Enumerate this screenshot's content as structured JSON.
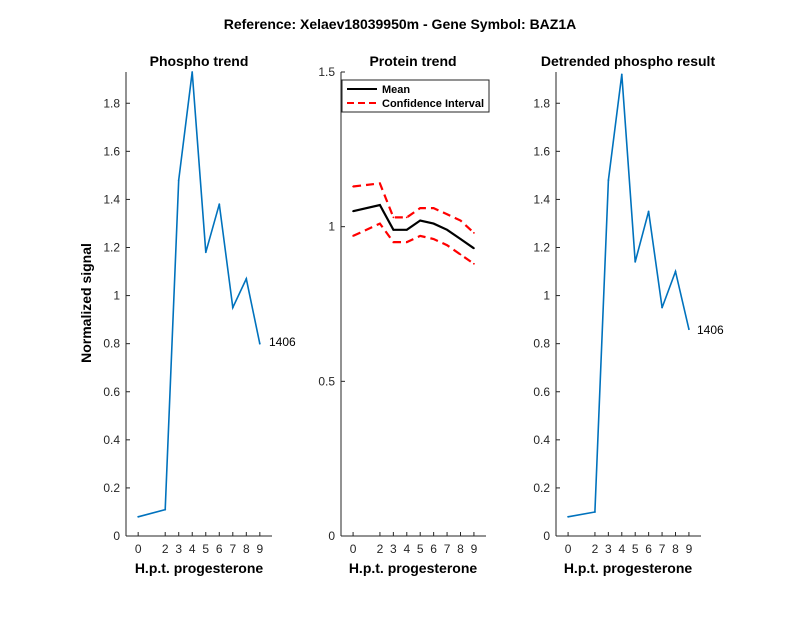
{
  "figure": {
    "title": "Reference:  Xelaev18039950m - Gene Symbol:  BAZ1A"
  },
  "colors": {
    "phospho_line": "#0072BD",
    "mean_line": "#000000",
    "ci_line": "#FF0000",
    "axis": "#262626"
  },
  "chart_data": [
    {
      "type": "line",
      "title": "Phospho trend",
      "xlabel": "H.p.t. progesterone",
      "ylabel": "Normalized signal",
      "x": [
        0,
        2,
        3,
        4,
        5,
        6,
        7,
        8,
        9
      ],
      "xticks": [
        "0",
        "2",
        "3",
        "4",
        "5",
        "6",
        "7",
        "8",
        "9"
      ],
      "ylim": [
        0,
        1.93
      ],
      "yticks": [
        "0",
        "0.2",
        "0.4",
        "0.6",
        "0.8",
        "1",
        "1.2",
        "1.4",
        "1.6",
        "1.8"
      ],
      "series": [
        {
          "values": [
            0.08,
            0.11,
            1.48,
            1.93,
            1.18,
            1.38,
            0.95,
            1.07,
            0.8
          ]
        }
      ],
      "annotation": "1406",
      "grid": false
    },
    {
      "type": "line",
      "title": "Protein trend",
      "xlabel": "H.p.t. progesterone",
      "ylabel": "",
      "x": [
        0,
        2,
        3,
        4,
        5,
        6,
        7,
        8,
        9
      ],
      "xticks": [
        "0",
        "2",
        "3",
        "4",
        "5",
        "6",
        "7",
        "8",
        "9"
      ],
      "ylim": [
        0,
        1.5
      ],
      "yticks": [
        "0",
        "0.5",
        "1",
        "1.5"
      ],
      "series": [
        {
          "name": "Mean",
          "values": [
            1.05,
            1.07,
            0.99,
            0.99,
            1.02,
            1.01,
            0.99,
            0.96,
            0.93
          ]
        },
        {
          "name": "Confidence Interval",
          "values": [
            1.13,
            1.14,
            1.03,
            1.03,
            1.06,
            1.06,
            1.04,
            1.02,
            0.98
          ]
        },
        {
          "values": [
            0.97,
            1.01,
            0.95,
            0.95,
            0.97,
            0.96,
            0.94,
            0.91,
            0.88
          ]
        }
      ],
      "legend": {
        "position": "top-right",
        "entries": [
          "Mean",
          "Confidence Interval"
        ]
      },
      "grid": false
    },
    {
      "type": "line",
      "title": "Detrended phospho result",
      "xlabel": "H.p.t. progesterone",
      "ylabel": "",
      "x": [
        0,
        2,
        3,
        4,
        5,
        6,
        7,
        8,
        9
      ],
      "xticks": [
        "0",
        "2",
        "3",
        "4",
        "5",
        "6",
        "7",
        "8",
        "9"
      ],
      "ylim": [
        0,
        1.93
      ],
      "yticks": [
        "0",
        "0.2",
        "0.4",
        "0.6",
        "0.8",
        "1",
        "1.2",
        "1.4",
        "1.6",
        "1.8"
      ],
      "series": [
        {
          "values": [
            0.08,
            0.1,
            1.48,
            1.92,
            1.14,
            1.35,
            0.95,
            1.1,
            0.86
          ]
        }
      ],
      "annotation": "1406",
      "grid": false
    }
  ]
}
